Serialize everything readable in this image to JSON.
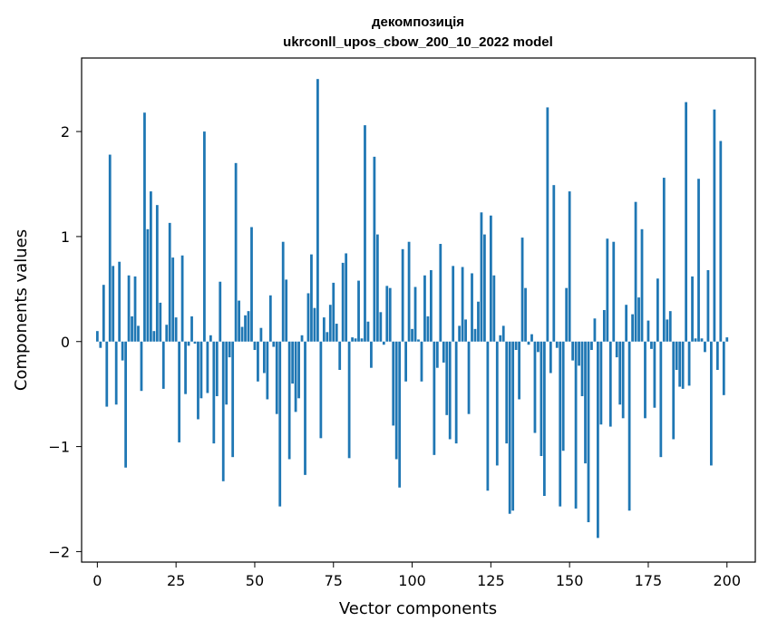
{
  "chart_data": {
    "type": "bar",
    "title_line1": "декомпозиція",
    "title_line2": "ukrconll_upos_cbow_200_10_2022 model",
    "xlabel": "Vector components",
    "ylabel": "Components values",
    "xlim": [
      -5,
      209
    ],
    "ylim": [
      -2.1,
      2.7
    ],
    "x_ticks": [
      0,
      25,
      50,
      75,
      100,
      125,
      150,
      175,
      200
    ],
    "x_tick_labels": [
      "0",
      "25",
      "50",
      "75",
      "100",
      "125",
      "150",
      "175",
      "200"
    ],
    "y_ticks": [
      -2,
      -1,
      0,
      1,
      2
    ],
    "y_tick_labels": [
      "−2",
      "−1",
      "0",
      "1",
      "2"
    ],
    "bar_color": "#1f77b4",
    "grid": false,
    "values": [
      0.1,
      -0.06,
      0.54,
      -0.62,
      1.78,
      0.72,
      -0.6,
      0.76,
      -0.18,
      -1.2,
      0.63,
      0.24,
      0.62,
      0.15,
      -0.47,
      2.18,
      1.07,
      1.43,
      0.1,
      1.3,
      0.37,
      -0.45,
      0.16,
      1.13,
      0.8,
      0.23,
      -0.96,
      0.82,
      -0.5,
      -0.04,
      0.24,
      -0.02,
      -0.74,
      -0.54,
      2.0,
      -0.49,
      0.06,
      -0.97,
      -0.52,
      0.57,
      -1.33,
      -0.6,
      -0.15,
      -1.1,
      1.7,
      0.39,
      0.14,
      0.25,
      0.29,
      1.09,
      -0.08,
      -0.38,
      0.13,
      -0.3,
      -0.55,
      0.44,
      -0.05,
      -0.69,
      -1.57,
      0.95,
      0.59,
      -1.12,
      -0.4,
      -0.67,
      -0.54,
      0.06,
      -1.27,
      0.46,
      0.83,
      0.32,
      2.5,
      -0.92,
      0.23,
      0.09,
      0.35,
      0.56,
      0.17,
      -0.27,
      0.75,
      0.84,
      -1.11,
      0.04,
      0.03,
      0.58,
      0.03,
      2.06,
      0.19,
      -0.25,
      1.76,
      1.02,
      0.28,
      -0.03,
      0.53,
      0.51,
      -0.8,
      -1.12,
      -1.39,
      0.88,
      -0.38,
      0.95,
      0.12,
      0.52,
      0.02,
      -0.38,
      0.63,
      0.24,
      0.68,
      -1.08,
      -0.25,
      0.93,
      -0.2,
      -0.7,
      -0.93,
      0.72,
      -0.97,
      0.15,
      0.71,
      0.21,
      -0.69,
      0.65,
      0.12,
      0.38,
      1.23,
      1.02,
      -1.42,
      1.2,
      0.63,
      -1.18,
      0.06,
      0.15,
      -0.97,
      -1.64,
      -1.61,
      -0.08,
      -0.55,
      0.99,
      0.51,
      -0.03,
      0.07,
      -0.87,
      -0.1,
      -1.09,
      -1.47,
      2.23,
      -0.3,
      1.49,
      -0.06,
      -1.57,
      -1.04,
      0.51,
      1.43,
      -0.18,
      -1.59,
      -0.23,
      -0.52,
      -1.16,
      -1.72,
      -0.08,
      0.22,
      -1.87,
      -0.79,
      0.3,
      0.98,
      -0.81,
      0.95,
      -0.15,
      -0.6,
      -0.73,
      0.35,
      -1.61,
      0.26,
      1.33,
      0.42,
      1.07,
      -0.73,
      0.2,
      -0.07,
      -0.63,
      0.6,
      -1.1,
      1.56,
      0.21,
      0.29,
      -0.93,
      -0.27,
      -0.43,
      -0.45,
      2.28,
      -0.42,
      0.62,
      0.03,
      1.55,
      0.03,
      -0.1,
      0.68,
      -1.18,
      2.21,
      -0.27,
      1.91,
      -0.51,
      0.04
    ]
  }
}
